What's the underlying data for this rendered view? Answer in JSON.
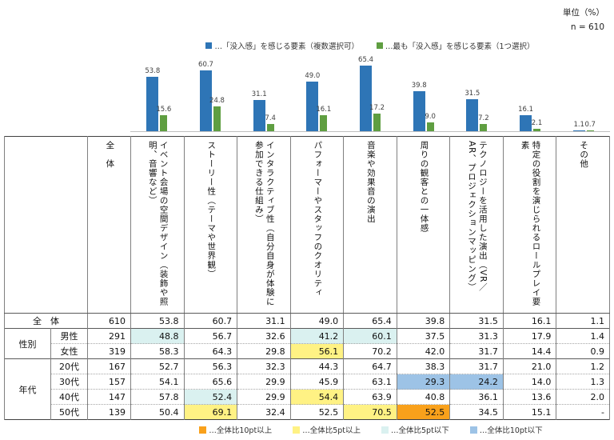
{
  "meta": {
    "unit_label": "単位（%）",
    "sample_label": "n = 610"
  },
  "colors": {
    "bar_multi": "#2E75B6",
    "bar_single": "#5F9E41",
    "axis_line": "#BFBFBF",
    "highlight": {
      "o": "#F9A11B",
      "y": "#FFF284",
      "c": "#DAF1F0",
      "b": "#9DC3E6"
    }
  },
  "chart_data": {
    "type": "bar",
    "title": "",
    "unit": "%",
    "n": 610,
    "categories": [
      "イベント会場の空間デザイン（装飾や照明、音響など）",
      "ストーリー性（テーマや世界観）",
      "インタラクティブ性（自分自身が体験に参加できる仕組み）",
      "パフォーマーやスタッフのクオリティ",
      "音楽や効果音の演出",
      "周りの観客との一体感",
      "テクノロジーを活用した演出（VR／AR、プロジェクションマッピング）",
      "特定の役割を演じられるロールプレイ要素",
      "その他"
    ],
    "series": [
      {
        "name": "「没入感」を感じる要素（複数選択可）",
        "legend_label": "…「没入感」を感じる要素（複数選択可）",
        "values": [
          53.8,
          60.7,
          31.1,
          49.0,
          65.4,
          39.8,
          31.5,
          16.1,
          1.1
        ]
      },
      {
        "name": "最も「没入感」を感じる要素（1つ選択）",
        "legend_label": "…最も「没入感」を感じる要素（1つ選択）",
        "values": [
          15.6,
          24.8,
          7.4,
          16.1,
          17.2,
          9.0,
          7.2,
          2.1,
          0.7
        ]
      }
    ],
    "ylim": [
      0,
      70
    ],
    "grid": false,
    "legend_position": "top",
    "value_labels": true
  },
  "table": {
    "total_col_header": "全　体",
    "col_headers": [
      "イベント会場の空間デザイン（装飾や照明、音響など）",
      "ストーリー性（テーマや世界観）",
      "インタラクティブ性（自分自身が体験に参加できる仕組み）",
      "パフォーマーやスタッフのクオリティ",
      "音楽や効果音の演出",
      "周りの観客との一体感",
      "テクノロジーを活用した演出（VR／AR、プロジェクションマッピング）",
      "特定の役割を演じられるロールプレイ要素",
      "その他"
    ],
    "groups": [
      {
        "label": "全　体",
        "span_all": true,
        "rows": [
          {
            "sub": "",
            "n": "610",
            "values": [
              "53.8",
              "60.7",
              "31.1",
              "49.0",
              "65.4",
              "39.8",
              "31.5",
              "16.1",
              "1.1"
            ],
            "marks": [
              "",
              "",
              "",
              "",
              "",
              "",
              "",
              "",
              ""
            ]
          }
        ]
      },
      {
        "label": "性別",
        "span_all": false,
        "rows": [
          {
            "sub": "男性",
            "n": "291",
            "values": [
              "48.8",
              "56.7",
              "32.6",
              "41.2",
              "60.1",
              "37.5",
              "31.3",
              "17.9",
              "1.4"
            ],
            "marks": [
              "c",
              "",
              "",
              "c",
              "c",
              "",
              "",
              "",
              ""
            ]
          },
          {
            "sub": "女性",
            "n": "319",
            "values": [
              "58.3",
              "64.3",
              "29.8",
              "56.1",
              "70.2",
              "42.0",
              "31.7",
              "14.4",
              "0.9"
            ],
            "marks": [
              "",
              "",
              "",
              "y",
              "",
              "",
              "",
              "",
              ""
            ]
          }
        ]
      },
      {
        "label": "年代",
        "span_all": false,
        "rows": [
          {
            "sub": "20代",
            "n": "167",
            "values": [
              "52.7",
              "56.3",
              "32.3",
              "44.3",
              "64.7",
              "38.3",
              "31.7",
              "21.0",
              "1.2"
            ],
            "marks": [
              "",
              "",
              "",
              "",
              "",
              "",
              "",
              "",
              ""
            ]
          },
          {
            "sub": "30代",
            "n": "157",
            "values": [
              "54.1",
              "65.6",
              "29.9",
              "45.9",
              "63.1",
              "29.3",
              "24.2",
              "14.0",
              "1.3"
            ],
            "marks": [
              "",
              "",
              "",
              "",
              "",
              "b",
              "b",
              "",
              ""
            ]
          },
          {
            "sub": "40代",
            "n": "147",
            "values": [
              "57.8",
              "52.4",
              "29.9",
              "54.4",
              "63.9",
              "40.8",
              "36.1",
              "13.6",
              "2.0"
            ],
            "marks": [
              "",
              "c",
              "",
              "y",
              "",
              "",
              "",
              "",
              ""
            ]
          },
          {
            "sub": "50代",
            "n": "139",
            "values": [
              "50.4",
              "69.1",
              "32.4",
              "52.5",
              "70.5",
              "52.5",
              "34.5",
              "15.1",
              "-"
            ],
            "marks": [
              "",
              "y",
              "",
              "",
              "y",
              "o",
              "",
              "",
              ""
            ]
          }
        ]
      }
    ]
  },
  "legend_bottom": {
    "items": [
      {
        "mark": "o",
        "label": "…全体比10pt以上"
      },
      {
        "mark": "y",
        "label": "…全体比5pt以上"
      },
      {
        "mark": "c",
        "label": "…全体比5pt以下"
      },
      {
        "mark": "b",
        "label": "…全体比10pt以下"
      }
    ]
  }
}
